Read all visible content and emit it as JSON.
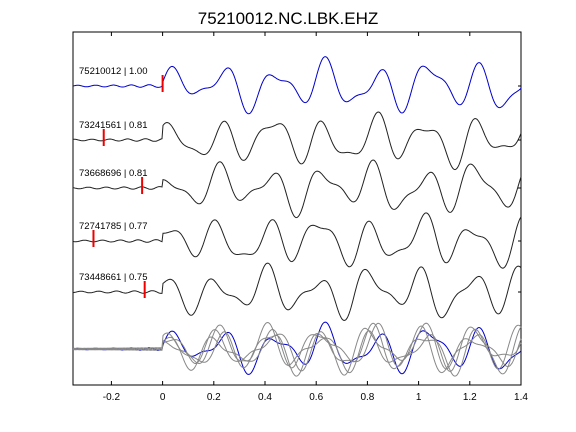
{
  "chart_data": {
    "type": "line",
    "title": "75210012.NC.LBK.EHZ",
    "xlabel": "",
    "ylabel": "",
    "xlim": [
      -0.35,
      1.4
    ],
    "xticks": [
      -0.2,
      0,
      0.2,
      0.4,
      0.6,
      0.8,
      1,
      1.2,
      1.4
    ],
    "xtick_labels": [
      "-0.2",
      "0",
      "0.2",
      "0.4",
      "0.6",
      "0.8",
      "1",
      "1.2",
      "1.4"
    ],
    "grid": false,
    "colors": {
      "master": "#0000cc",
      "trace": "#222222",
      "overlay": "#888888",
      "pick": "#ee0000"
    },
    "traces": [
      {
        "name": "75210012",
        "cc": "1.00",
        "label": "75210012 | 1.00",
        "pick_time": 0.0,
        "color": "master"
      },
      {
        "name": "73241561",
        "cc": "0.81",
        "label": "73241561 | 0.81",
        "pick_time": -0.23,
        "color": "trace"
      },
      {
        "name": "73668696",
        "cc": "0.81",
        "label": "73668696 | 0.81",
        "pick_time": -0.08,
        "color": "trace"
      },
      {
        "name": "72741785",
        "cc": "0.77",
        "label": "72741785 | 0.77",
        "pick_time": -0.27,
        "color": "trace"
      },
      {
        "name": "73448661",
        "cc": "0.75",
        "label": "73448661 | 0.75",
        "pick_time": -0.07,
        "color": "trace"
      }
    ],
    "overlay": {
      "description": "",
      "series": [
        "75210012",
        "73241561",
        "73668696",
        "72741785",
        "73448661"
      ]
    }
  }
}
